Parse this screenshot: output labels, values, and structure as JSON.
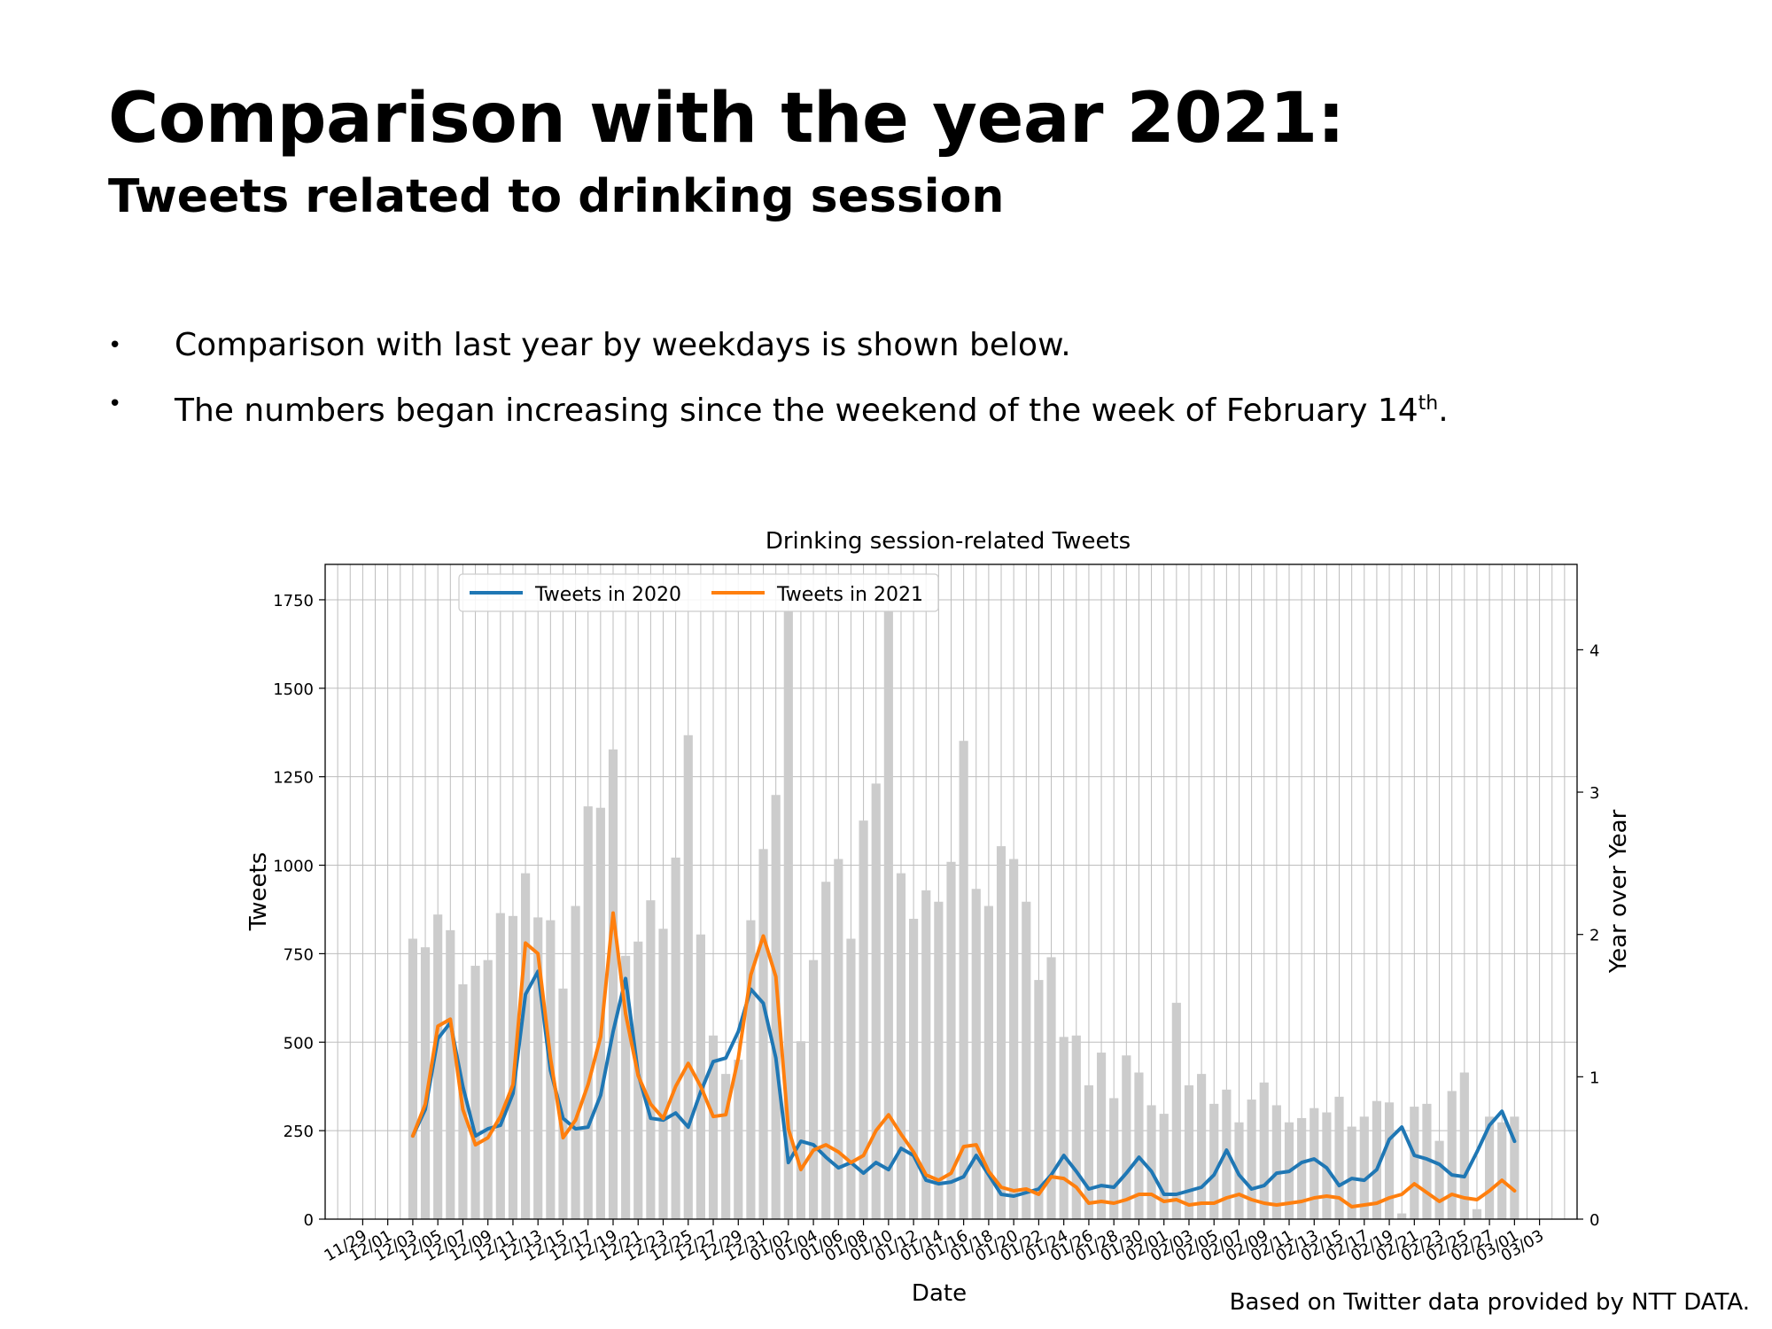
{
  "slide": {
    "title": "Comparison with the year 2021:",
    "subtitle": "Tweets related to drinking session",
    "bullets": [
      {
        "text": "Comparison with last year by weekdays is shown below."
      },
      {
        "text": "The numbers began increasing since the weekend of the week of February 14",
        "sup": "th",
        "after": "."
      }
    ],
    "footnote": "Based on Twitter data provided by NTT DATA."
  },
  "chart_data": {
    "type": "line",
    "title": "Drinking session-related Tweets",
    "xlabel": "Date",
    "ylabel": "Tweets",
    "y2label": "Year over Year",
    "ylim": [
      0,
      1850
    ],
    "y2lim": [
      0,
      4.6
    ],
    "yticks": [
      0,
      250,
      500,
      750,
      1000,
      1250,
      1500,
      1750
    ],
    "y2ticks": [
      0,
      1,
      2,
      3,
      4
    ],
    "grid": true,
    "legend_position": "top-left",
    "xticks": [
      "11/29",
      "12/01",
      "12/03",
      "12/05",
      "12/07",
      "12/09",
      "12/11",
      "12/13",
      "12/15",
      "12/17",
      "12/19",
      "12/21",
      "12/23",
      "12/25",
      "12/27",
      "12/29",
      "12/31",
      "01/02",
      "01/04",
      "01/06",
      "01/08",
      "01/10",
      "01/12",
      "01/14",
      "01/16",
      "01/18",
      "01/20",
      "01/22",
      "01/24",
      "01/26",
      "01/28",
      "01/30",
      "02/01",
      "02/03",
      "02/05",
      "02/07",
      "02/09",
      "02/11",
      "02/13",
      "02/15",
      "02/17",
      "02/19",
      "02/21",
      "02/23",
      "02/25",
      "02/27",
      "03/01",
      "03/03"
    ],
    "dates": [
      "12/03",
      "12/04",
      "12/05",
      "12/06",
      "12/07",
      "12/08",
      "12/09",
      "12/10",
      "12/11",
      "12/12",
      "12/13",
      "12/14",
      "12/15",
      "12/16",
      "12/17",
      "12/18",
      "12/19",
      "12/20",
      "12/21",
      "12/22",
      "12/23",
      "12/24",
      "12/25",
      "12/26",
      "12/27",
      "12/28",
      "12/29",
      "12/30",
      "12/31",
      "01/01",
      "01/02",
      "01/03",
      "01/04",
      "01/05",
      "01/06",
      "01/07",
      "01/08",
      "01/09",
      "01/10",
      "01/11",
      "01/12",
      "01/13",
      "01/14",
      "01/15",
      "01/16",
      "01/17",
      "01/18",
      "01/19",
      "01/20",
      "01/21",
      "01/22",
      "01/23",
      "01/24",
      "01/25",
      "01/26",
      "01/27",
      "01/28",
      "01/29",
      "01/30",
      "01/31",
      "02/01",
      "02/02",
      "02/03",
      "02/04",
      "02/05",
      "02/06",
      "02/07",
      "02/08",
      "02/09",
      "02/10",
      "02/11",
      "02/12",
      "02/13",
      "02/14",
      "02/15",
      "02/16",
      "02/17",
      "02/18",
      "02/19",
      "02/20",
      "02/21",
      "02/22",
      "02/23",
      "02/24",
      "02/25",
      "02/26",
      "02/27",
      "02/28",
      "03/01"
    ],
    "series": [
      {
        "name": "Tweets in 2020",
        "color": "#1f77b4",
        "axis": "left",
        "values": [
          235,
          310,
          510,
          555,
          375,
          235,
          255,
          265,
          355,
          635,
          700,
          420,
          285,
          255,
          260,
          350,
          530,
          680,
          410,
          285,
          280,
          300,
          260,
          360,
          445,
          455,
          530,
          650,
          610,
          455,
          160,
          220,
          210,
          175,
          145,
          160,
          130,
          160,
          140,
          200,
          180,
          110,
          100,
          105,
          120,
          180,
          125,
          70,
          65,
          75,
          85,
          125,
          180,
          135,
          85,
          95,
          90,
          130,
          175,
          135,
          70,
          70,
          80,
          90,
          125,
          195,
          125,
          85,
          95,
          130,
          135,
          160,
          170,
          145,
          95,
          115,
          110,
          140,
          225,
          260,
          180,
          170,
          155,
          125,
          120,
          190,
          265,
          305,
          220
        ]
      },
      {
        "name": "Tweets in 2021",
        "color": "#ff7f0e",
        "axis": "left",
        "values": [
          235,
          325,
          545,
          565,
          310,
          210,
          230,
          290,
          380,
          780,
          750,
          455,
          230,
          280,
          380,
          515,
          865,
          580,
          405,
          325,
          285,
          375,
          440,
          375,
          290,
          295,
          455,
          690,
          800,
          685,
          255,
          140,
          195,
          210,
          190,
          160,
          180,
          250,
          295,
          240,
          190,
          125,
          110,
          130,
          205,
          210,
          135,
          90,
          80,
          85,
          70,
          120,
          115,
          90,
          45,
          50,
          45,
          55,
          70,
          70,
          50,
          55,
          40,
          45,
          45,
          60,
          70,
          55,
          45,
          40,
          45,
          50,
          60,
          65,
          60,
          35,
          40,
          45,
          60,
          70,
          100,
          75,
          50,
          70,
          60,
          55,
          80,
          110,
          80
        ]
      },
      {
        "name": "Year over Year",
        "color": "#cccccc",
        "axis": "right",
        "values": [
          1.97,
          1.91,
          2.14,
          2.03,
          1.65,
          1.78,
          1.82,
          2.15,
          2.13,
          2.43,
          2.12,
          2.1,
          1.62,
          2.2,
          2.9,
          2.89,
          3.3,
          1.85,
          1.95,
          2.24,
          2.04,
          2.54,
          3.4,
          2.0,
          1.29,
          1.02,
          1.12,
          2.1,
          2.6,
          2.98,
          4.27,
          1.25,
          1.82,
          2.37,
          2.53,
          1.97,
          2.8,
          3.06,
          4.27,
          2.43,
          2.11,
          2.31,
          2.23,
          2.51,
          3.36,
          2.32,
          2.2,
          2.62,
          2.53,
          2.23,
          1.68,
          1.84,
          1.28,
          1.29,
          0.94,
          1.17,
          0.85,
          1.15,
          1.03,
          0.8,
          0.74,
          1.52,
          0.94,
          1.02,
          0.81,
          0.91,
          0.68,
          0.84,
          0.96,
          0.8,
          0.68,
          0.71,
          0.78,
          0.75,
          0.86,
          0.65,
          0.72,
          0.83,
          0.82,
          0.04,
          0.79,
          0.81,
          0.55,
          0.9,
          1.03,
          0.07,
          0.72,
          0.68,
          0.72
        ]
      }
    ]
  }
}
